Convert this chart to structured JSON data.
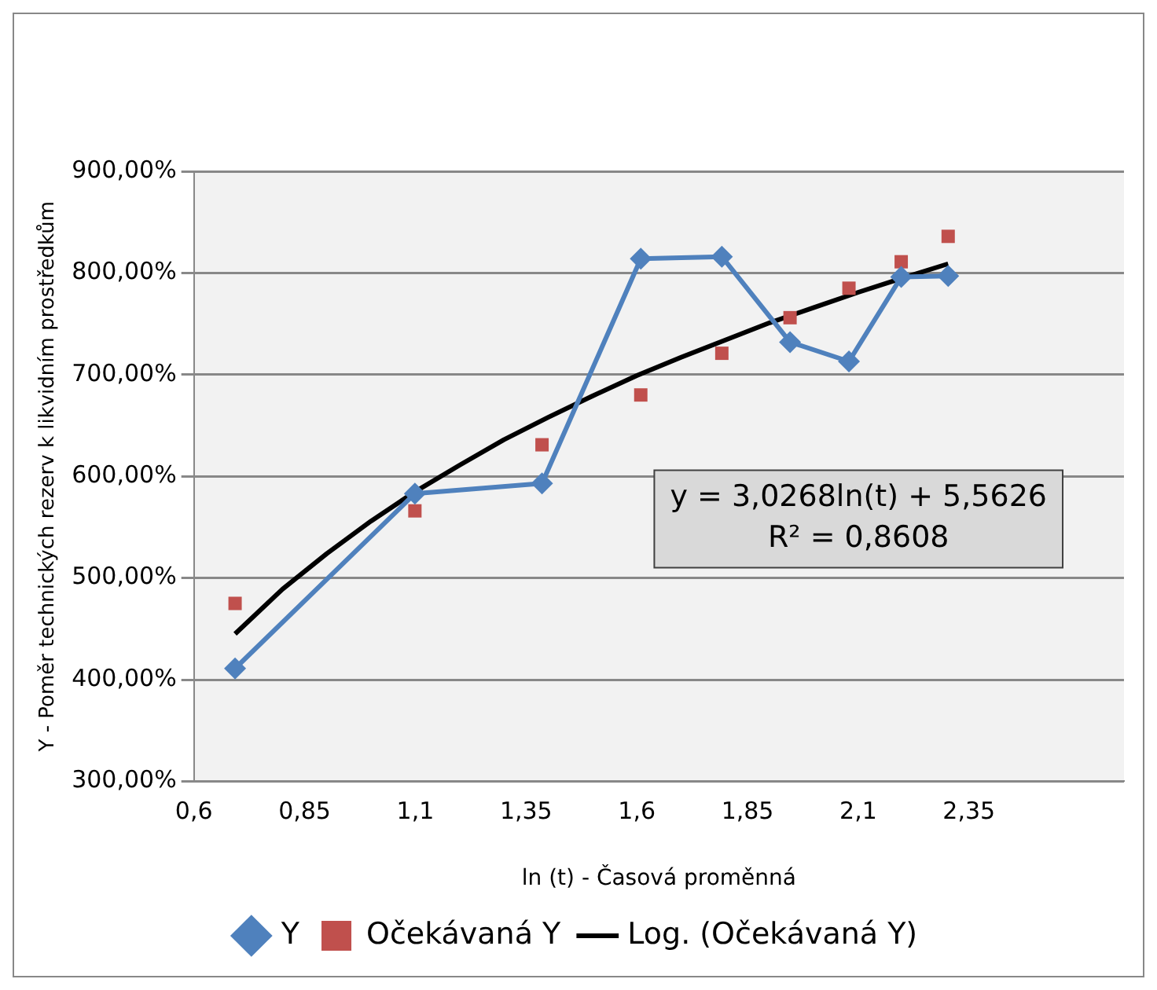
{
  "chart_data": {
    "type": "line",
    "xlabel": "ln (t) - Časová proměnná",
    "ylabel": "Y - Poměr technických rezerv k likvidním prostředkům",
    "xlim": [
      0.6,
      2.7
    ],
    "xticks": [
      {
        "value": 0.6,
        "label": "0,6"
      },
      {
        "value": 0.85,
        "label": "0,85"
      },
      {
        "value": 1.1,
        "label": "1,1"
      },
      {
        "value": 1.35,
        "label": "1,35"
      },
      {
        "value": 1.6,
        "label": "1,6"
      },
      {
        "value": 1.85,
        "label": "1,85"
      },
      {
        "value": 2.1,
        "label": "2,1"
      },
      {
        "value": 2.35,
        "label": "2,35"
      }
    ],
    "ylim": [
      300,
      900
    ],
    "yticks": [
      {
        "value": 300,
        "label": "300,00%"
      },
      {
        "value": 400,
        "label": "400,00%"
      },
      {
        "value": 500,
        "label": "500,00%"
      },
      {
        "value": 600,
        "label": "600,00%"
      },
      {
        "value": 700,
        "label": "700,00%"
      },
      {
        "value": 800,
        "label": "800,00%"
      },
      {
        "value": 900,
        "label": "900,00%"
      }
    ],
    "grid": "y",
    "legend": "bottom",
    "series": [
      {
        "name": "Y",
        "type": "line",
        "color": "#4f81bd",
        "marker": "diamond",
        "x": [
          0.693,
          1.099,
          1.386,
          1.609,
          1.792,
          1.946,
          2.079,
          2.197,
          2.303
        ],
        "values": [
          411,
          583,
          593,
          814,
          816,
          732,
          713,
          796,
          797
        ]
      },
      {
        "name": "Očekávaná Y",
        "type": "scatter",
        "color": "#c0504d",
        "marker": "square",
        "x": [
          0.693,
          1.099,
          1.386,
          1.609,
          1.792,
          1.946,
          2.079,
          2.197,
          2.303
        ],
        "values": [
          475,
          566,
          631,
          680,
          721,
          756,
          785,
          811,
          836
        ]
      },
      {
        "name": "Log. (Očekávaná Y)",
        "type": "line",
        "color": "#000000",
        "marker": "none",
        "line_style": "solid",
        "x": [
          0.693,
          0.8,
          0.9,
          1.0,
          1.1,
          1.2,
          1.3,
          1.4,
          1.5,
          1.6,
          1.7,
          1.8,
          1.9,
          2.0,
          2.1,
          2.2,
          2.303
        ],
        "values": [
          445,
          489,
          524,
          556,
          585,
          611,
          636,
          658,
          679,
          699,
          717,
          734,
          751,
          766,
          781,
          795,
          809
        ]
      }
    ],
    "annotations": [
      "y = 3,0268ln(t) + 5,5626",
      "R² = 0,8608"
    ]
  }
}
